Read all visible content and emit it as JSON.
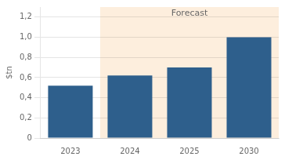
{
  "chart_data": {
    "type": "bar",
    "categories": [
      "2023",
      "2024",
      "2025",
      "2030"
    ],
    "values": [
      0.52,
      0.62,
      0.7,
      1.0
    ],
    "color": "#2e5f8c",
    "ylabel": "$tn",
    "ylim": [
      0,
      1.3
    ],
    "yticks": [
      0,
      {
        "value": 0.2,
        "label": "0,2"
      },
      {
        "value": 0.4,
        "label": "0,4"
      },
      {
        "value": 0.6,
        "label": "0,6"
      },
      {
        "value": 0.8,
        "label": "0,8"
      },
      {
        "value": 1.0,
        "label": "1,0"
      },
      {
        "value": 1.2,
        "label": "1,2"
      }
    ],
    "grid": true,
    "annotations": [
      {
        "text": "Forecast",
        "from": "2024",
        "to": "2030",
        "color": "#fdeedd"
      }
    ]
  }
}
